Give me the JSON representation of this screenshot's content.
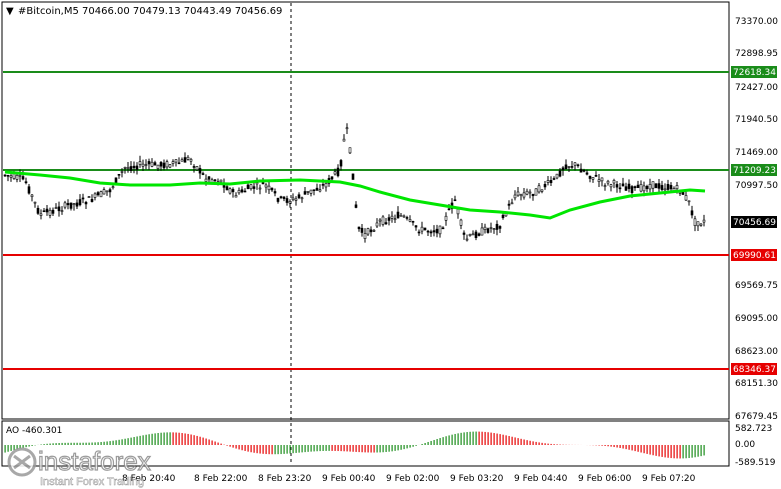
{
  "header": {
    "symbol_title": "#Bitcoin,M5  70466.00 70479.13 70443.49 70456.69",
    "menu_glyph": "▼"
  },
  "colors": {
    "candle": "#000000",
    "ma_line": "#00e600",
    "resistance": "#1a8c1a",
    "support": "#e60000",
    "grid": "#000000",
    "ao_up": "#1a8c1a",
    "ao_down": "#e60000"
  },
  "price_axis": {
    "ticks": [
      "73370.00",
      "72898.95",
      "72427.00",
      "71940.50",
      "71469.00",
      "70997.50",
      "69569.75",
      "69095.00",
      "68623.00",
      "68151.30",
      "67679.45"
    ]
  },
  "levels": {
    "res1": "72618.34",
    "res2": "71209.23",
    "current": "70456.69",
    "sup1": "69990.61",
    "sup2": "68346.37"
  },
  "time_axis": {
    "labels": [
      "8 Feb 20:40",
      "8 Feb 22:00",
      "8 Feb 23:20",
      "9 Feb 00:40",
      "9 Feb 02:00",
      "9 Feb 03:20",
      "9 Feb 04:40",
      "9 Feb 06:00",
      "9 Feb 07:20"
    ]
  },
  "ao": {
    "label": "AO -460.301",
    "ticks": [
      "582.723",
      "0.00",
      "-589.519"
    ]
  },
  "logo": {
    "brand": "instaforex",
    "tagline": "Instant Forex Trading"
  }
}
